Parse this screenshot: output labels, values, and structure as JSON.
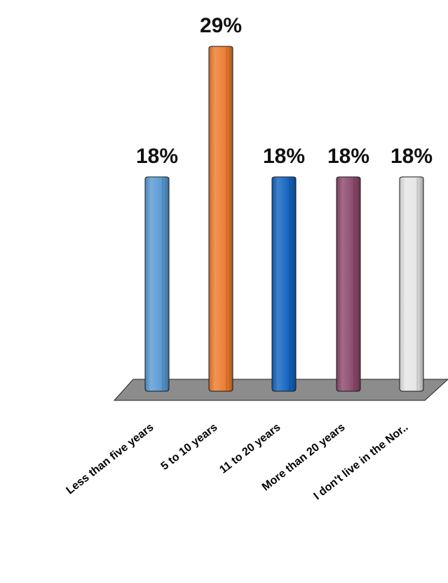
{
  "chart_data": {
    "type": "bar",
    "categories": [
      "Less than five years",
      "5 to 10 years",
      "11 to 20 years",
      "More than 20 years",
      "I don't live in the Nor.."
    ],
    "values": [
      18,
      29,
      18,
      18,
      18
    ],
    "value_labels": [
      "18%",
      "29%",
      "18%",
      "18%",
      "18%"
    ],
    "unit": "%",
    "ylim": [
      0,
      29
    ],
    "colors": [
      "#5b9bd5",
      "#ed7d31",
      "#1565c0",
      "#8e4a6e",
      "#e6e6e6"
    ],
    "floor_color": "#8c8c8c",
    "grid": false,
    "legend": "none"
  }
}
